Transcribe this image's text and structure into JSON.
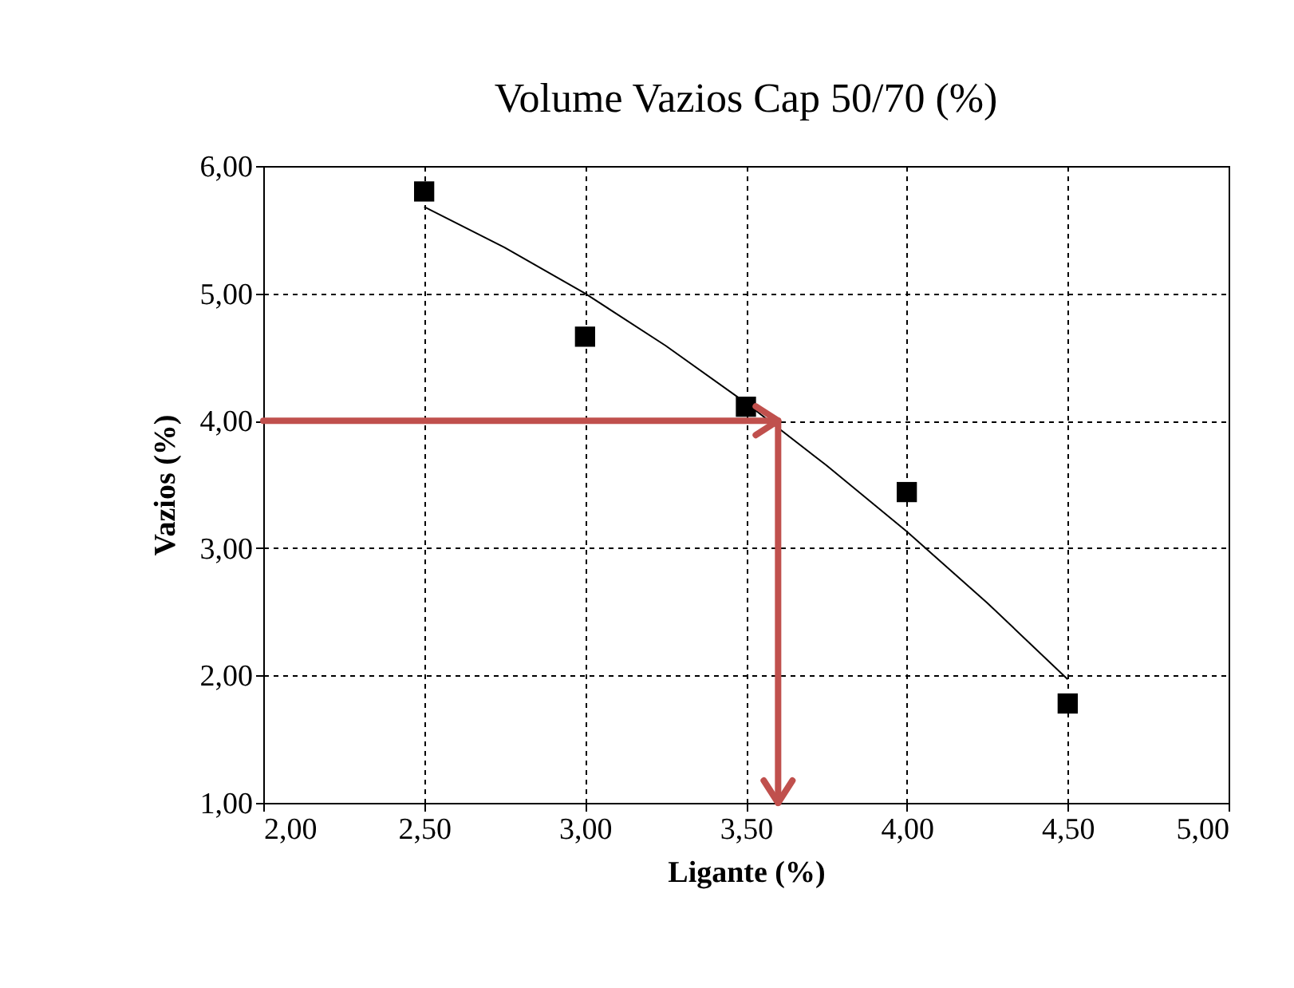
{
  "chart_data": {
    "type": "scatter",
    "title": "Volume Vazios Cap 50/70 (%)",
    "xlabel": "Ligante (%)",
    "ylabel": "Vazios (%)",
    "series": [
      {
        "type": "scatter",
        "color": "#000000",
        "x": [
          2.5,
          3.0,
          3.5,
          4.0,
          4.5
        ],
        "values": [
          5.8,
          4.66,
          4.11,
          3.44,
          1.78
        ]
      },
      {
        "type": "line",
        "color": "#000000",
        "marker": "none",
        "x": [
          2.5,
          2.75,
          3.0,
          3.25,
          3.5,
          3.75,
          4.0,
          4.25,
          4.5
        ],
        "values": [
          5.68,
          5.36,
          5.0,
          4.59,
          4.14,
          3.65,
          3.13,
          2.57,
          1.97
        ]
      }
    ],
    "xlim": [
      2,
      5
    ],
    "ylim": [
      1,
      6
    ],
    "xticks": [
      {
        "value": 2,
        "label": "2,00"
      },
      {
        "value": 2.5,
        "label": "2,50"
      },
      {
        "value": 3,
        "label": "3,00"
      },
      {
        "value": 3.5,
        "label": "3,50"
      },
      {
        "value": 4,
        "label": "4,00"
      },
      {
        "value": 4.5,
        "label": "4,50"
      },
      {
        "value": 5,
        "label": "5,00"
      }
    ],
    "yticks": [
      {
        "value": 1,
        "label": "1,00"
      },
      {
        "value": 2,
        "label": "2,00"
      },
      {
        "value": 3,
        "label": "3,00"
      },
      {
        "value": 4,
        "label": "4,00"
      },
      {
        "value": 5,
        "label": "5,00"
      },
      {
        "value": 6,
        "label": "6,00"
      }
    ],
    "ref_lines": [
      {
        "axis": "y",
        "value": 4.0,
        "color": "#c0504d"
      },
      {
        "axis": "x",
        "value": 3.6,
        "color": "#c0504d"
      }
    ],
    "grid": true,
    "marker": "square"
  }
}
